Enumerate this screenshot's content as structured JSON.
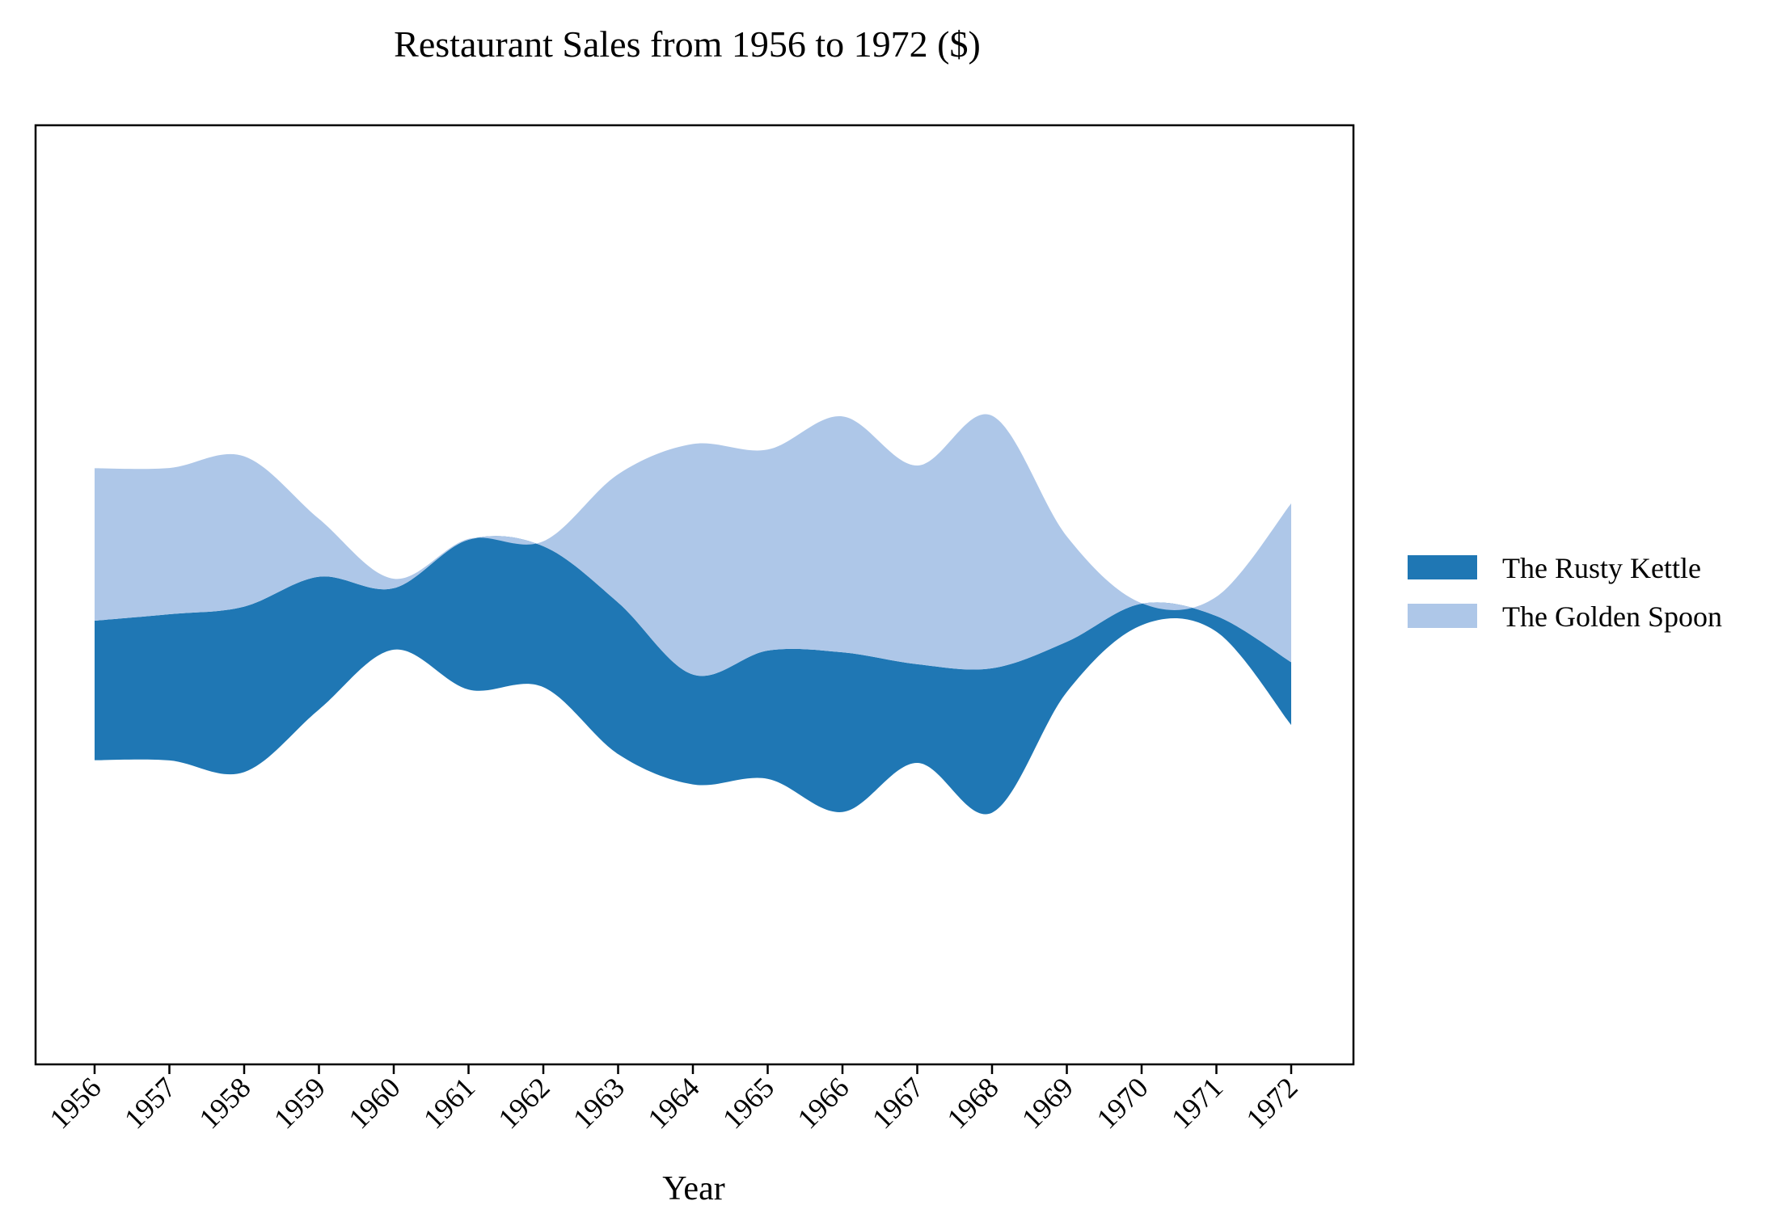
{
  "chart_data": {
    "type": "area",
    "subtype": "streamgraph",
    "title": "Restaurant Sales from 1956 to 1972 ($)",
    "xlabel": "Year",
    "ylabel": "",
    "categories": [
      "1956",
      "1957",
      "1958",
      "1959",
      "1960",
      "1961",
      "1962",
      "1963",
      "1964",
      "1965",
      "1966",
      "1967",
      "1968",
      "1969",
      "1970",
      "1971",
      "1972"
    ],
    "series": [
      {
        "name": "The Rusty Kettle",
        "color": "#1f77b4",
        "values": [
          311,
          326,
          369,
          296,
          137,
          334,
          314,
          338,
          245,
          286,
          356,
          220,
          322,
          112,
          48,
          35,
          140
        ]
      },
      {
        "name": "The Golden Spoon",
        "color": "#aec7e8",
        "values": [
          340,
          326,
          335,
          129,
          21,
          2,
          11,
          286,
          514,
          448,
          526,
          443,
          563,
          235,
          1,
          43,
          354
        ]
      }
    ],
    "baseline": "symmetric",
    "y_ticks_visible": false,
    "grid": false,
    "legend": {
      "placement": "right",
      "entries": [
        "The Rusty Kettle",
        "The Golden Spoon"
      ]
    }
  }
}
